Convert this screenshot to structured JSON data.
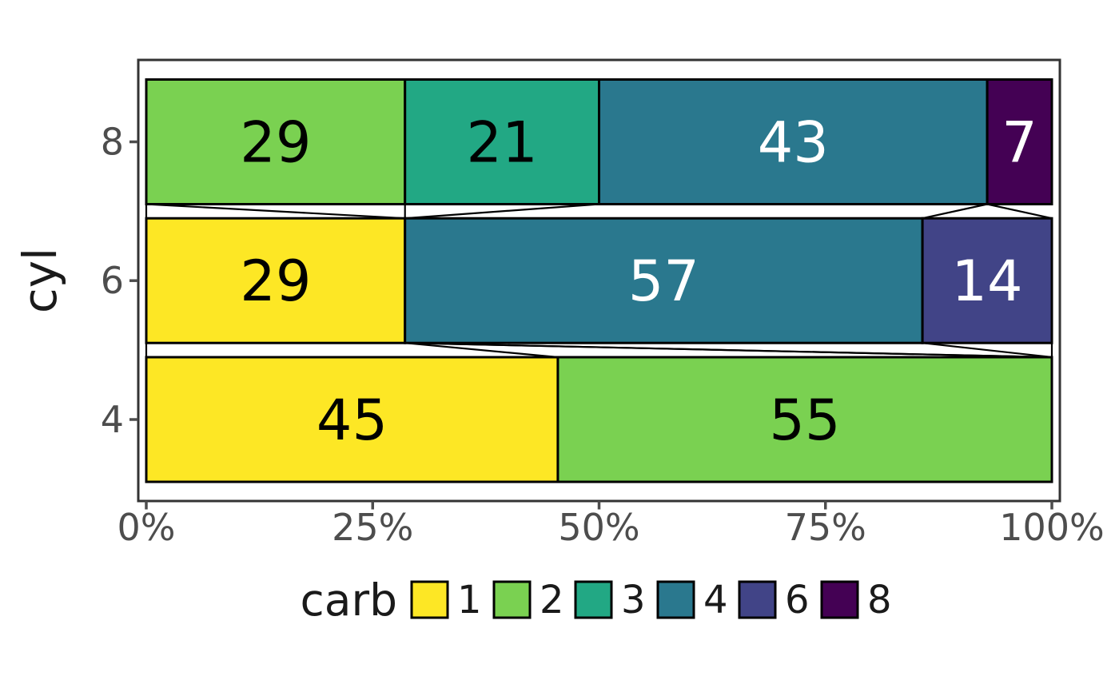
{
  "figure": {
    "background": "#FFFFFF",
    "panel_border_color": "#333333",
    "axis_text_color": "#4D4D4D",
    "title_text_color": "#1A1A1A",
    "bar_outline_color": "#000000",
    "connector_color": "#000000"
  },
  "chart_data": {
    "type": "bar",
    "orientation": "horizontal",
    "stacked": true,
    "normalized": "percent",
    "title": "",
    "xlabel": "",
    "ylabel": "cyl",
    "x_axis": {
      "tick_labels": [
        "0%",
        "25%",
        "50%",
        "75%",
        "100%"
      ],
      "tick_values": [
        0,
        25,
        50,
        75,
        100
      ],
      "range": [
        0,
        100
      ]
    },
    "y_axis": {
      "categories": [
        "8",
        "6",
        "4"
      ]
    },
    "legend": {
      "title": "carb",
      "position": "bottom",
      "entries": [
        {
          "label": "1",
          "color": "#FDE725"
        },
        {
          "label": "2",
          "color": "#7AD151"
        },
        {
          "label": "3",
          "color": "#22A884"
        },
        {
          "label": "4",
          "color": "#2A788E"
        },
        {
          "label": "6",
          "color": "#414487"
        },
        {
          "label": "8",
          "color": "#440154"
        }
      ]
    },
    "rows": [
      {
        "cyl": "8",
        "segments": [
          {
            "carb": "2",
            "pct": 28.57,
            "label": "29",
            "label_color": "#000000"
          },
          {
            "carb": "3",
            "pct": 21.43,
            "label": "21",
            "label_color": "#000000"
          },
          {
            "carb": "4",
            "pct": 42.86,
            "label": "43",
            "label_color": "#FFFFFF"
          },
          {
            "carb": "8",
            "pct": 7.14,
            "label": "7",
            "label_color": "#FFFFFF"
          }
        ]
      },
      {
        "cyl": "6",
        "segments": [
          {
            "carb": "1",
            "pct": 28.57,
            "label": "29",
            "label_color": "#000000"
          },
          {
            "carb": "4",
            "pct": 57.14,
            "label": "57",
            "label_color": "#FFFFFF"
          },
          {
            "carb": "6",
            "pct": 14.29,
            "label": "14",
            "label_color": "#FFFFFF"
          }
        ]
      },
      {
        "cyl": "4",
        "segments": [
          {
            "carb": "1",
            "pct": 45.45,
            "label": "45",
            "label_color": "#000000"
          },
          {
            "carb": "2",
            "pct": 54.55,
            "label": "55",
            "label_color": "#000000"
          }
        ]
      }
    ]
  }
}
